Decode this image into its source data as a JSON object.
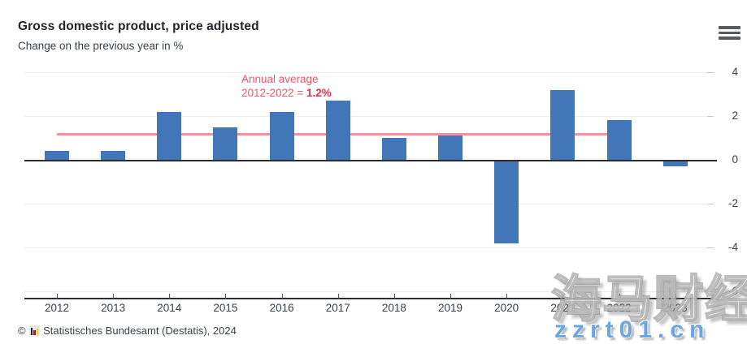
{
  "header": {
    "title": "Gross domestic product, price adjusted",
    "subtitle": "Change on the previous year in %"
  },
  "menu": {
    "icon": "hamburger-icon"
  },
  "chart_data": {
    "type": "bar",
    "title": "Gross domestic product, price adjusted",
    "subtitle": "Change on the previous year in %",
    "categories": [
      "2012",
      "2013",
      "2014",
      "2015",
      "2016",
      "2017",
      "2018",
      "2019",
      "2020",
      "2021",
      "2022",
      "2023"
    ],
    "values": [
      0.4,
      0.4,
      2.2,
      1.5,
      2.2,
      2.7,
      1.0,
      1.1,
      -3.8,
      3.2,
      1.8,
      -0.3
    ],
    "ylim": [
      -6,
      4
    ],
    "yticks": [
      4,
      2,
      0,
      -2,
      -4,
      -6
    ],
    "grid": true,
    "legend_position": "none",
    "bar_color": "#4376b8",
    "average_line": {
      "value": 1.2,
      "span_categories": [
        "2012",
        "2022"
      ],
      "color": "#f98e9d",
      "label_line1": "Annual average",
      "label_line2_prefix": "2012-2022 = ",
      "label_line2_value": "1.2%",
      "text_color": "#f25766"
    }
  },
  "footer": {
    "copyright_symbol": "©",
    "source_logo": "destatis-logo-icon",
    "text": "Statistisches Bundesamt (Destatis), 2024"
  },
  "watermark": {
    "cjk_text": "海马财经",
    "site_text": "zzrt01.cn"
  }
}
